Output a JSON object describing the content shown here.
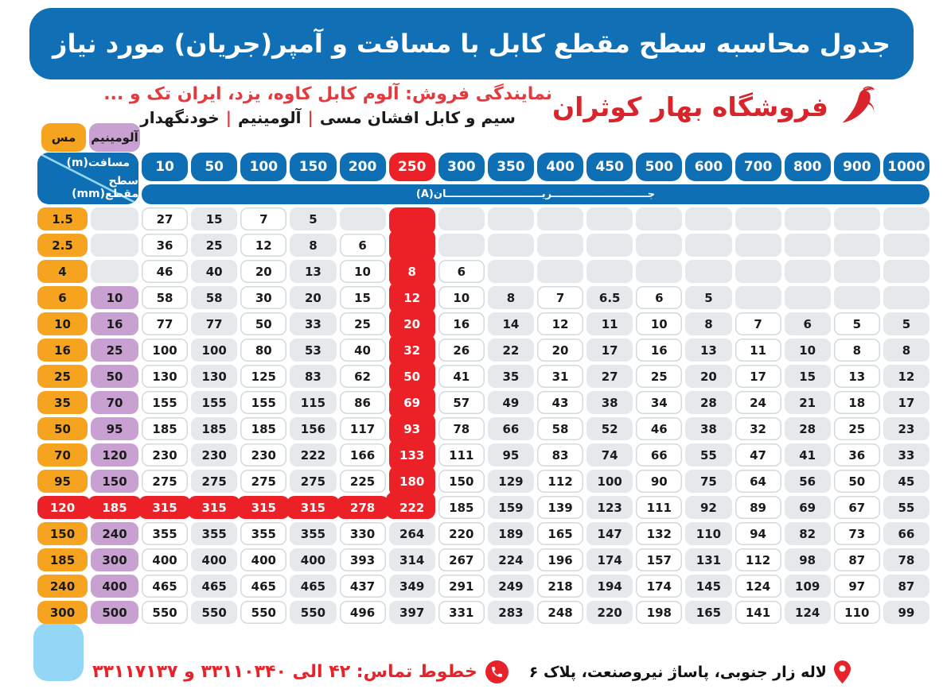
{
  "title": "جدول محاسبه سطح مقطع کابل با مسافت و آمپر(جریان) مورد نیاز",
  "logo": {
    "text": "فروشگاه بهار کوثران",
    "icon": "swoosh-bird-icon",
    "color": "#d8252c"
  },
  "subtitle": {
    "line1": "نمایندگی فروش: آلوم کابل کاوه، یزد، ایران تک و ...",
    "line2_parts": [
      "سیم و کابل افشان مسی",
      "آلومینیم",
      "خودنگهدار"
    ],
    "separator": "|"
  },
  "table": {
    "material_headers": {
      "copper": "مس",
      "aluminum": "آلومینیم"
    },
    "corner": {
      "top": "مسافت(m)",
      "bottom": "سطح مقطع(mm)"
    },
    "current_label": "جـــــــــــــــــــــــــــریـــــــــــــــــــــــــــان(A)",
    "distances": [
      "10",
      "50",
      "100",
      "150",
      "200",
      "250",
      "300",
      "350",
      "400",
      "450",
      "500",
      "600",
      "700",
      "800",
      "900",
      "1000"
    ],
    "highlight_distance": "250",
    "red_col_index": 5,
    "red_col_rows": 12,
    "red_row_index": 11,
    "rows": [
      {
        "cu": "1.5",
        "al": "",
        "values": [
          "27",
          "15",
          "7",
          "5",
          "",
          "",
          "",
          "",
          "",
          "",
          "",
          "",
          "",
          "",
          "",
          ""
        ]
      },
      {
        "cu": "2.5",
        "al": "",
        "values": [
          "36",
          "25",
          "12",
          "8",
          "6",
          "",
          "",
          "",
          "",
          "",
          "",
          "",
          "",
          "",
          "",
          ""
        ]
      },
      {
        "cu": "4",
        "al": "",
        "values": [
          "46",
          "40",
          "20",
          "13",
          "10",
          "8",
          "6",
          "",
          "",
          "",
          "",
          "",
          "",
          "",
          "",
          ""
        ]
      },
      {
        "cu": "6",
        "al": "10",
        "values": [
          "58",
          "58",
          "30",
          "20",
          "15",
          "12",
          "10",
          "8",
          "7",
          "6.5",
          "6",
          "5",
          "",
          "",
          "",
          ""
        ]
      },
      {
        "cu": "10",
        "al": "16",
        "values": [
          "77",
          "77",
          "50",
          "33",
          "25",
          "20",
          "16",
          "14",
          "12",
          "11",
          "10",
          "8",
          "7",
          "6",
          "5",
          "5"
        ]
      },
      {
        "cu": "16",
        "al": "25",
        "values": [
          "100",
          "100",
          "80",
          "53",
          "40",
          "32",
          "26",
          "22",
          "20",
          "17",
          "16",
          "13",
          "11",
          "10",
          "8",
          "8"
        ]
      },
      {
        "cu": "25",
        "al": "50",
        "values": [
          "130",
          "130",
          "125",
          "83",
          "62",
          "50",
          "41",
          "35",
          "31",
          "27",
          "25",
          "20",
          "17",
          "15",
          "13",
          "12"
        ]
      },
      {
        "cu": "35",
        "al": "70",
        "values": [
          "155",
          "155",
          "155",
          "115",
          "86",
          "69",
          "57",
          "49",
          "43",
          "38",
          "34",
          "28",
          "24",
          "21",
          "18",
          "17"
        ]
      },
      {
        "cu": "50",
        "al": "95",
        "values": [
          "185",
          "185",
          "185",
          "156",
          "117",
          "93",
          "78",
          "66",
          "58",
          "52",
          "46",
          "38",
          "32",
          "28",
          "25",
          "23"
        ]
      },
      {
        "cu": "70",
        "al": "120",
        "values": [
          "230",
          "230",
          "230",
          "222",
          "166",
          "133",
          "111",
          "95",
          "83",
          "74",
          "66",
          "55",
          "47",
          "41",
          "36",
          "33"
        ]
      },
      {
        "cu": "95",
        "al": "150",
        "values": [
          "275",
          "275",
          "275",
          "275",
          "225",
          "180",
          "150",
          "129",
          "112",
          "100",
          "90",
          "75",
          "64",
          "56",
          "50",
          "45"
        ]
      },
      {
        "cu": "120",
        "al": "185",
        "values": [
          "315",
          "315",
          "315",
          "315",
          "278",
          "222",
          "185",
          "159",
          "139",
          "123",
          "111",
          "92",
          "89",
          "69",
          "67",
          "55"
        ]
      },
      {
        "cu": "150",
        "al": "240",
        "values": [
          "355",
          "355",
          "355",
          "355",
          "330",
          "264",
          "220",
          "189",
          "165",
          "147",
          "132",
          "110",
          "94",
          "82",
          "73",
          "66"
        ]
      },
      {
        "cu": "185",
        "al": "300",
        "values": [
          "400",
          "400",
          "400",
          "400",
          "393",
          "314",
          "267",
          "224",
          "196",
          "174",
          "157",
          "131",
          "112",
          "98",
          "87",
          "78"
        ]
      },
      {
        "cu": "240",
        "al": "400",
        "values": [
          "465",
          "465",
          "465",
          "465",
          "437",
          "349",
          "291",
          "249",
          "218",
          "194",
          "174",
          "145",
          "124",
          "109",
          "97",
          "87"
        ]
      },
      {
        "cu": "300",
        "al": "500",
        "values": [
          "550",
          "550",
          "550",
          "550",
          "496",
          "397",
          "331",
          "283",
          "248",
          "220",
          "198",
          "165",
          "141",
          "124",
          "110",
          "99"
        ]
      }
    ]
  },
  "footer": {
    "address": "لاله زار جنوبی، پاساژ نیروصنعت، پلاک ۶",
    "phone": "خطوط تماس: ۴۲ الی ۳۳۱۱۰۳۴۰ و ۳۳۱۱۷۱۳۷",
    "icons": [
      "location-pin-icon",
      "phone-icon"
    ]
  },
  "colors": {
    "banner_blue": "#1170b5",
    "light_blue_trim": "#93d6f5",
    "highlight_red": "#ec2127",
    "copper_orange": "#f6a41f",
    "aluminum_purple": "#c9a0d2",
    "gray_cell": "#e5e9ec",
    "brand_red": "#d8252c"
  }
}
